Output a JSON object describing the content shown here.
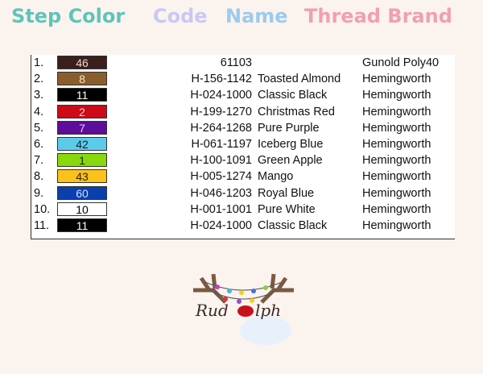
{
  "headers": [
    {
      "label": "Step Color",
      "color": "#5fc4b8"
    },
    {
      "label": "Code",
      "color": "#c9c8f5"
    },
    {
      "label": "Name",
      "color": "#9ccbec"
    },
    {
      "label": "Thread Brand",
      "color": "#f19fb3"
    }
  ],
  "rows": [
    {
      "step": "1.",
      "swatch": "46",
      "color": "#3a1f1c",
      "text": "#f0d8c8",
      "code": "61103",
      "name": "",
      "brand": "Gunold Poly40"
    },
    {
      "step": "2.",
      "swatch": "8",
      "color": "#8a5e2c",
      "text": "#f5e6c0",
      "code": "H-156-1142",
      "name": "Toasted Almond",
      "brand": "Hemingworth"
    },
    {
      "step": "3.",
      "swatch": "11",
      "color": "#000000",
      "text": "#ffffff",
      "code": "H-024-1000",
      "name": "Classic Black",
      "brand": "Hemingworth"
    },
    {
      "step": "4.",
      "swatch": "2",
      "color": "#cc0a18",
      "text": "#ffd0d0",
      "code": "H-199-1270",
      "name": "Christmas Red",
      "brand": "Hemingworth"
    },
    {
      "step": "5.",
      "swatch": "7",
      "color": "#5e0c9a",
      "text": "#e0c8ff",
      "code": "H-264-1268",
      "name": "Pure Purple",
      "brand": "Hemingworth"
    },
    {
      "step": "6.",
      "swatch": "42",
      "color": "#5ccbea",
      "text": "#102030",
      "code": "H-061-1197",
      "name": "Iceberg Blue",
      "brand": "Hemingworth"
    },
    {
      "step": "7.",
      "swatch": "1",
      "color": "#88d80e",
      "text": "#103000",
      "code": "H-100-1091",
      "name": "Green Apple",
      "brand": "Hemingworth"
    },
    {
      "step": "8.",
      "swatch": "43",
      "color": "#fbc21c",
      "text": "#302000",
      "code": "H-005-1274",
      "name": "Mango",
      "brand": "Hemingworth"
    },
    {
      "step": "9.",
      "swatch": "60",
      "color": "#0a3fae",
      "text": "#d0e0ff",
      "code": "H-046-1203",
      "name": "Royal Blue",
      "brand": "Hemingworth"
    },
    {
      "step": "10.",
      "swatch": "10",
      "color": "#ffffff",
      "text": "#000000",
      "code": "H-001-1001",
      "name": "Pure White",
      "brand": "Hemingworth"
    },
    {
      "step": "11.",
      "swatch": "11",
      "color": "#000000",
      "text": "#ffffff",
      "code": "H-024-1000",
      "name": "Classic Black",
      "brand": "Hemingworth"
    }
  ],
  "logo": {
    "text": "Rudolph"
  }
}
